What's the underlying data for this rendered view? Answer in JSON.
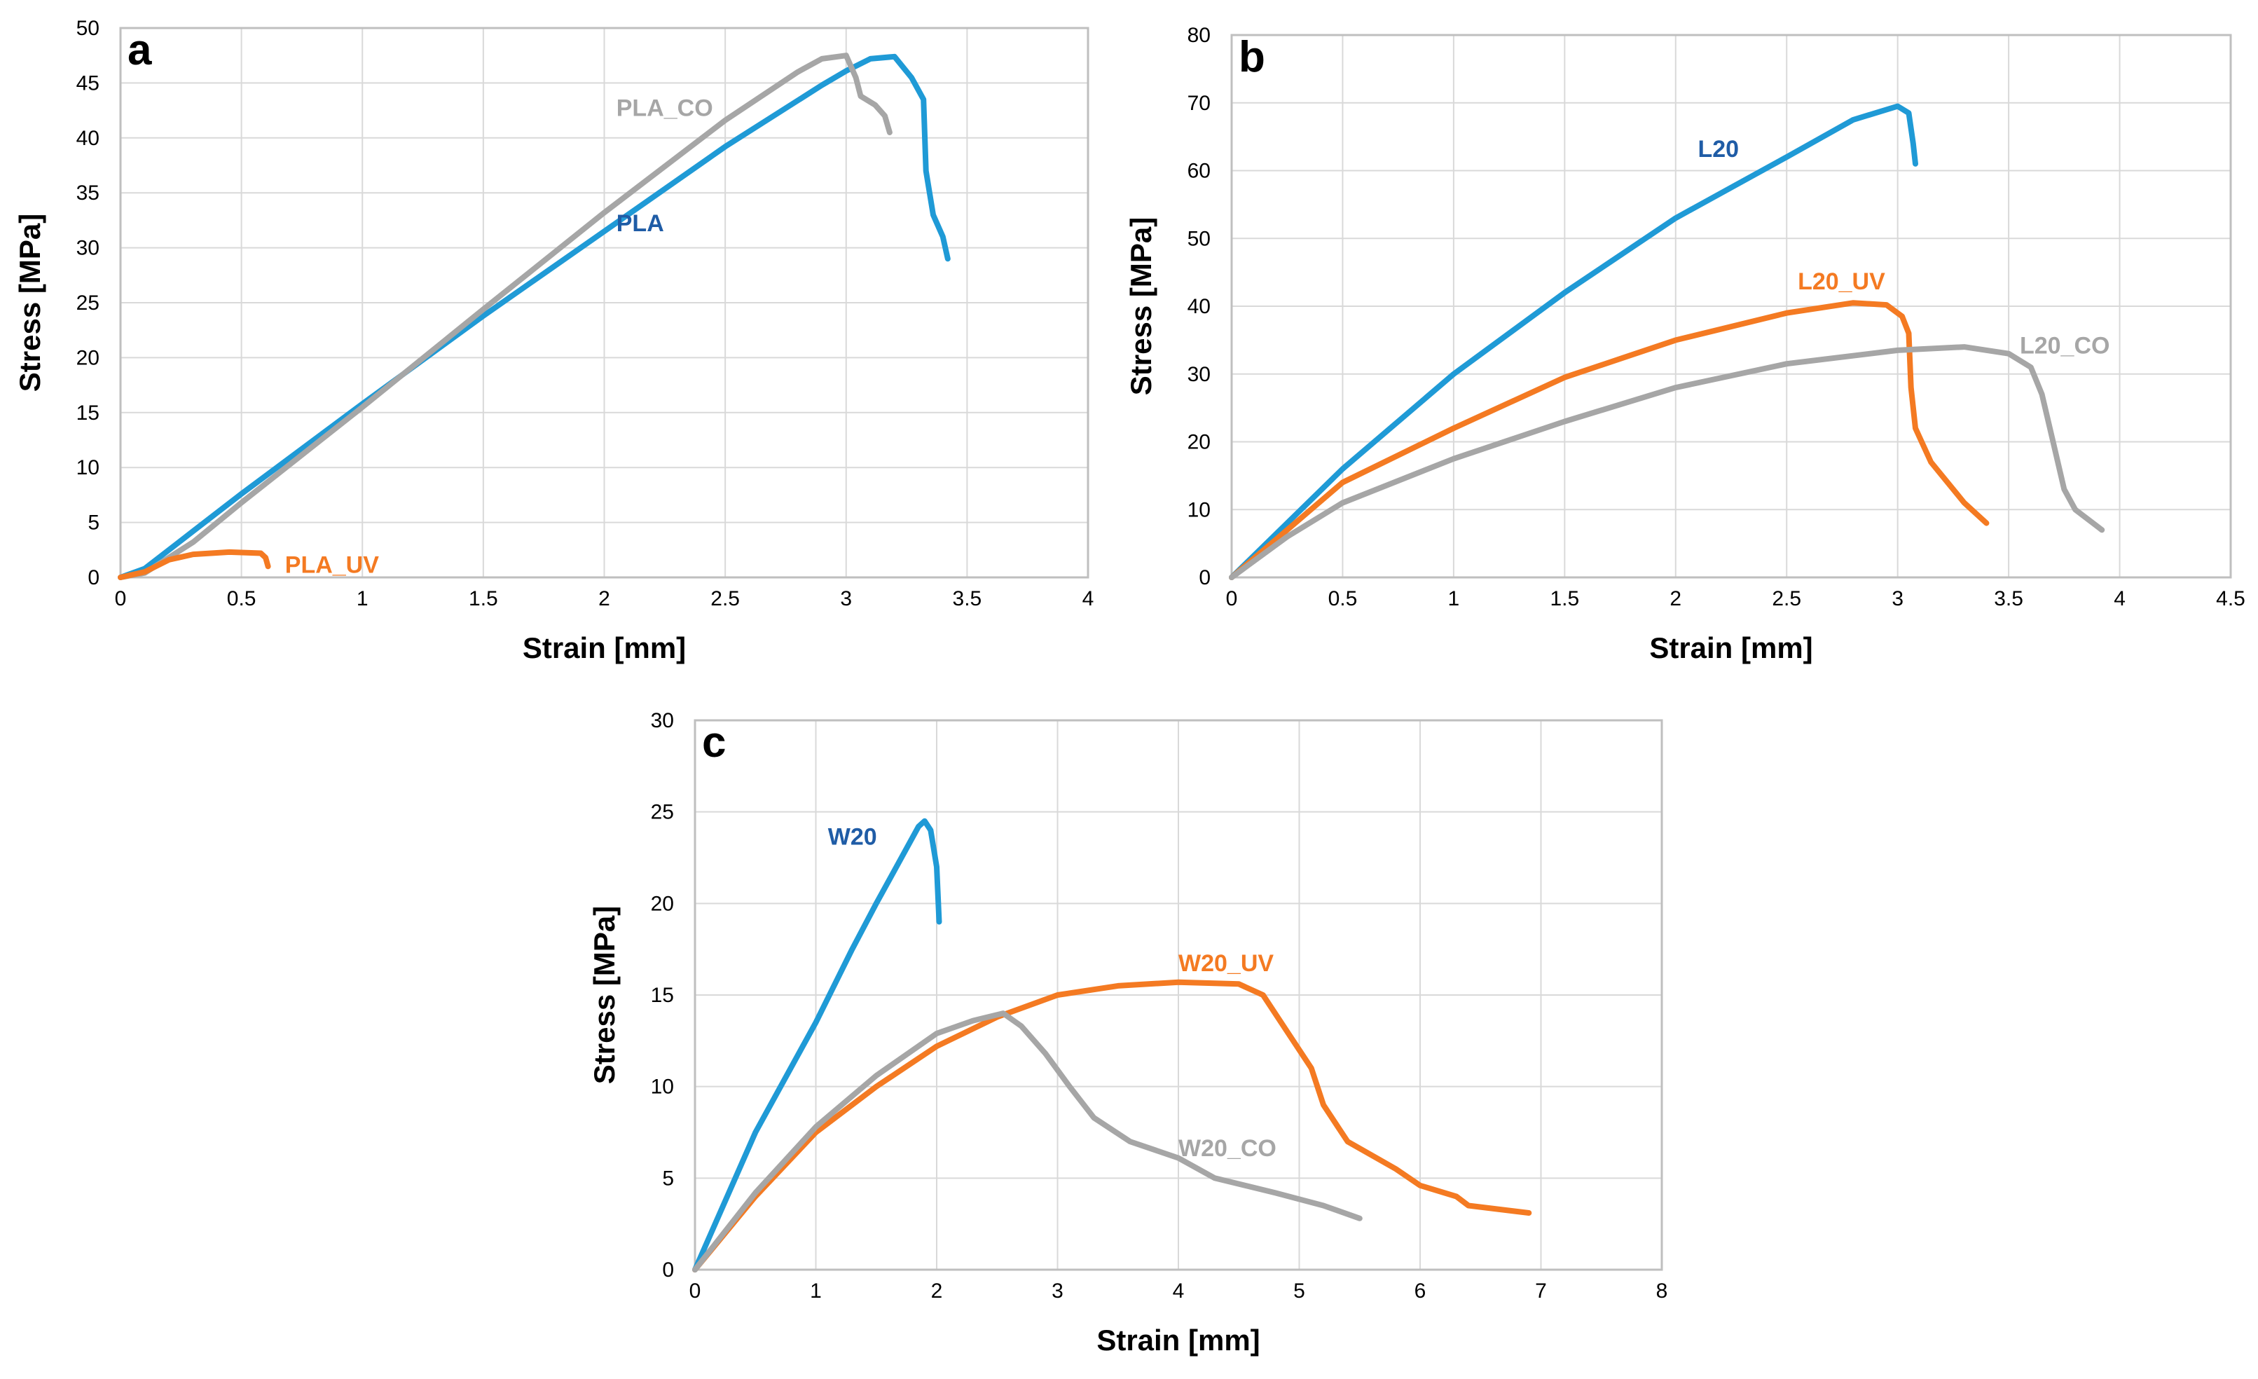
{
  "chart_data": [
    {
      "type": "line",
      "panel": "a",
      "xlabel": "Strain [mm]",
      "ylabel": "Stress [MPa]",
      "xlim": [
        0,
        4
      ],
      "ylim": [
        0,
        50
      ],
      "xticks": [
        "0",
        "0.5",
        "1",
        "1.5",
        "2",
        "2.5",
        "3",
        "3.5",
        "4"
      ],
      "yticks": [
        "0",
        "5",
        "10",
        "15",
        "20",
        "25",
        "30",
        "35",
        "40",
        "45",
        "50"
      ],
      "grid": true,
      "series": [
        {
          "name": "PLA",
          "color": "#1f9ad6",
          "label_color": "#1f5ca6",
          "label_at": [
            2.05,
            31.5
          ],
          "points": [
            [
              0,
              0
            ],
            [
              0.1,
              0.8
            ],
            [
              0.3,
              4.2
            ],
            [
              0.5,
              7.6
            ],
            [
              1.0,
              15.8
            ],
            [
              1.5,
              23.8
            ],
            [
              2.0,
              31.5
            ],
            [
              2.5,
              39.2
            ],
            [
              2.9,
              44.8
            ],
            [
              3.0,
              46.1
            ],
            [
              3.1,
              47.2
            ],
            [
              3.2,
              47.4
            ],
            [
              3.27,
              45.5
            ],
            [
              3.32,
              43.5
            ],
            [
              3.33,
              37.0
            ],
            [
              3.36,
              33.0
            ],
            [
              3.4,
              31.0
            ],
            [
              3.42,
              29.0
            ]
          ]
        },
        {
          "name": "PLA_CO",
          "color": "#a6a6a6",
          "label_color": "#a6a6a6",
          "label_at": [
            2.05,
            42.0
          ],
          "points": [
            [
              0,
              0
            ],
            [
              0.1,
              0.4
            ],
            [
              0.3,
              3.2
            ],
            [
              0.5,
              6.8
            ],
            [
              1.0,
              15.5
            ],
            [
              1.5,
              24.4
            ],
            [
              2.0,
              33.2
            ],
            [
              2.5,
              41.6
            ],
            [
              2.8,
              46.0
            ],
            [
              2.9,
              47.2
            ],
            [
              3.0,
              47.5
            ],
            [
              3.04,
              45.5
            ],
            [
              3.06,
              43.8
            ],
            [
              3.12,
              43.0
            ],
            [
              3.16,
              42.0
            ],
            [
              3.18,
              40.5
            ]
          ]
        },
        {
          "name": "PLA_UV",
          "color": "#f47a22",
          "label_color": "#f47a22",
          "label_at": [
            0.68,
            0.4
          ],
          "points": [
            [
              0,
              0
            ],
            [
              0.1,
              0.5
            ],
            [
              0.2,
              1.6
            ],
            [
              0.3,
              2.1
            ],
            [
              0.45,
              2.3
            ],
            [
              0.58,
              2.2
            ],
            [
              0.6,
              1.8
            ],
            [
              0.61,
              1.0
            ]
          ]
        }
      ]
    },
    {
      "type": "line",
      "panel": "b",
      "xlabel": "Strain [mm]",
      "ylabel": "Stress [MPa]",
      "xlim": [
        0,
        4.5
      ],
      "ylim": [
        0,
        80
      ],
      "xticks": [
        "0",
        "0.5",
        "1",
        "1.5",
        "2",
        "2.5",
        "3",
        "3.5",
        "4",
        "4.5"
      ],
      "yticks": [
        "0",
        "10",
        "20",
        "30",
        "40",
        "50",
        "60",
        "70",
        "80"
      ],
      "grid": true,
      "series": [
        {
          "name": "L20",
          "color": "#1f9ad6",
          "label_color": "#1f5ca6",
          "label_at": [
            2.1,
            62.0
          ],
          "points": [
            [
              0,
              0
            ],
            [
              0.25,
              8.0
            ],
            [
              0.5,
              16.0
            ],
            [
              1.0,
              30.0
            ],
            [
              1.5,
              42.0
            ],
            [
              2.0,
              53.0
            ],
            [
              2.5,
              62.0
            ],
            [
              2.8,
              67.5
            ],
            [
              3.0,
              69.5
            ],
            [
              3.05,
              68.5
            ],
            [
              3.07,
              64.0
            ],
            [
              3.08,
              61.0
            ]
          ]
        },
        {
          "name": "L20_UV",
          "color": "#f47a22",
          "label_color": "#f47a22",
          "label_at": [
            2.55,
            42.5
          ],
          "points": [
            [
              0,
              0
            ],
            [
              0.25,
              7.0
            ],
            [
              0.5,
              14.0
            ],
            [
              1.0,
              22.0
            ],
            [
              1.5,
              29.5
            ],
            [
              2.0,
              35.0
            ],
            [
              2.5,
              39.0
            ],
            [
              2.8,
              40.5
            ],
            [
              2.95,
              40.2
            ],
            [
              3.02,
              38.5
            ],
            [
              3.05,
              36.0
            ],
            [
              3.06,
              28.0
            ],
            [
              3.08,
              22.0
            ],
            [
              3.15,
              17.0
            ],
            [
              3.3,
              11.0
            ],
            [
              3.4,
              8.0
            ]
          ]
        },
        {
          "name": "L20_CO",
          "color": "#a6a6a6",
          "label_color": "#a6a6a6",
          "label_at": [
            3.55,
            33.0
          ],
          "points": [
            [
              0,
              0
            ],
            [
              0.25,
              6.0
            ],
            [
              0.5,
              11.0
            ],
            [
              1.0,
              17.5
            ],
            [
              1.5,
              23.0
            ],
            [
              2.0,
              28.0
            ],
            [
              2.5,
              31.5
            ],
            [
              3.0,
              33.5
            ],
            [
              3.3,
              34.0
            ],
            [
              3.5,
              33.0
            ],
            [
              3.6,
              31.0
            ],
            [
              3.65,
              27.0
            ],
            [
              3.7,
              20.0
            ],
            [
              3.75,
              13.0
            ],
            [
              3.8,
              10.0
            ],
            [
              3.9,
              7.5
            ],
            [
              3.92,
              7.0
            ]
          ]
        }
      ]
    },
    {
      "type": "line",
      "panel": "c",
      "xlabel": "Strain [mm]",
      "ylabel": "Stress [MPa]",
      "xlim": [
        0,
        8
      ],
      "ylim": [
        0,
        30
      ],
      "xticks": [
        "0",
        "1",
        "2",
        "3",
        "4",
        "5",
        "6",
        "7",
        "8"
      ],
      "yticks": [
        "0",
        "5",
        "10",
        "15",
        "20",
        "25",
        "30"
      ],
      "grid": true,
      "series": [
        {
          "name": "W20",
          "color": "#1f9ad6",
          "label_color": "#1f5ca6",
          "label_at": [
            1.1,
            23.2
          ],
          "points": [
            [
              0,
              0
            ],
            [
              0.2,
              3.0
            ],
            [
              0.5,
              7.5
            ],
            [
              1.0,
              13.5
            ],
            [
              1.3,
              17.5
            ],
            [
              1.5,
              20.0
            ],
            [
              1.7,
              22.4
            ],
            [
              1.85,
              24.2
            ],
            [
              1.9,
              24.5
            ],
            [
              1.95,
              24.0
            ],
            [
              2.0,
              22.0
            ],
            [
              2.02,
              19.0
            ]
          ]
        },
        {
          "name": "W20_UV",
          "color": "#f47a22",
          "label_color": "#f47a22",
          "label_at": [
            4.0,
            16.3
          ],
          "points": [
            [
              0,
              0
            ],
            [
              0.5,
              4.0
            ],
            [
              1.0,
              7.5
            ],
            [
              1.5,
              10.0
            ],
            [
              2.0,
              12.2
            ],
            [
              2.5,
              13.8
            ],
            [
              3.0,
              15.0
            ],
            [
              3.5,
              15.5
            ],
            [
              4.0,
              15.7
            ],
            [
              4.5,
              15.6
            ],
            [
              4.7,
              15.0
            ],
            [
              4.9,
              13.0
            ],
            [
              5.1,
              11.0
            ],
            [
              5.2,
              9.0
            ],
            [
              5.4,
              7.0
            ],
            [
              5.8,
              5.5
            ],
            [
              6.0,
              4.6
            ],
            [
              6.3,
              4.0
            ],
            [
              6.4,
              3.5
            ],
            [
              6.9,
              3.1
            ]
          ]
        },
        {
          "name": "W20_CO",
          "color": "#a6a6a6",
          "label_color": "#a6a6a6",
          "label_at": [
            4.0,
            6.2
          ],
          "points": [
            [
              0,
              0
            ],
            [
              0.5,
              4.2
            ],
            [
              1.0,
              7.8
            ],
            [
              1.5,
              10.6
            ],
            [
              2.0,
              12.9
            ],
            [
              2.3,
              13.6
            ],
            [
              2.55,
              14.0
            ],
            [
              2.7,
              13.3
            ],
            [
              2.9,
              11.8
            ],
            [
              3.1,
              10.0
            ],
            [
              3.3,
              8.3
            ],
            [
              3.6,
              7.0
            ],
            [
              4.0,
              6.1
            ],
            [
              4.3,
              5.0
            ],
            [
              4.8,
              4.2
            ],
            [
              5.2,
              3.5
            ],
            [
              5.5,
              2.8
            ]
          ]
        }
      ]
    }
  ]
}
